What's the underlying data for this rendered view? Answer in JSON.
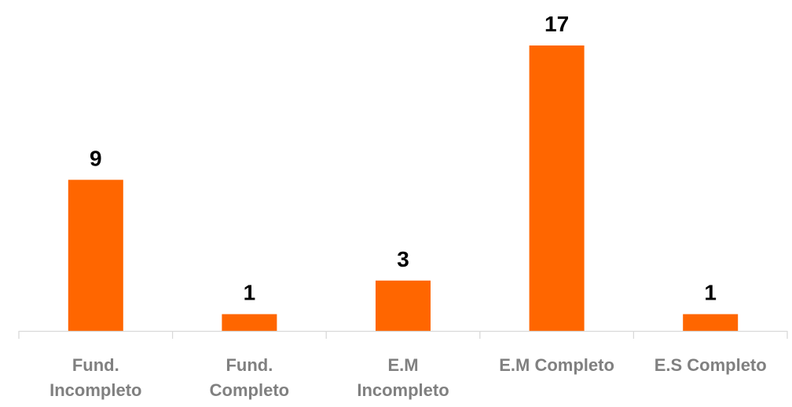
{
  "chart_data": {
    "type": "bar",
    "categories": [
      [
        "Fund.",
        "Incompleto"
      ],
      [
        "Fund.",
        "Completo"
      ],
      [
        "E.M",
        "Incompleto"
      ],
      [
        "E.M Completo"
      ],
      [
        "E.S Completo"
      ]
    ],
    "values": [
      9,
      1,
      3,
      17,
      1
    ],
    "data_labels": [
      "9",
      "1",
      "3",
      "17",
      "1"
    ],
    "title": "",
    "xlabel": "",
    "ylabel": "",
    "ylim": [
      0,
      17
    ],
    "grid": false,
    "legend": "none",
    "colors": {
      "bar": "#FF6600",
      "axis": "#D9D9D9",
      "category_text": "#808080",
      "value_text": "#000000"
    }
  }
}
